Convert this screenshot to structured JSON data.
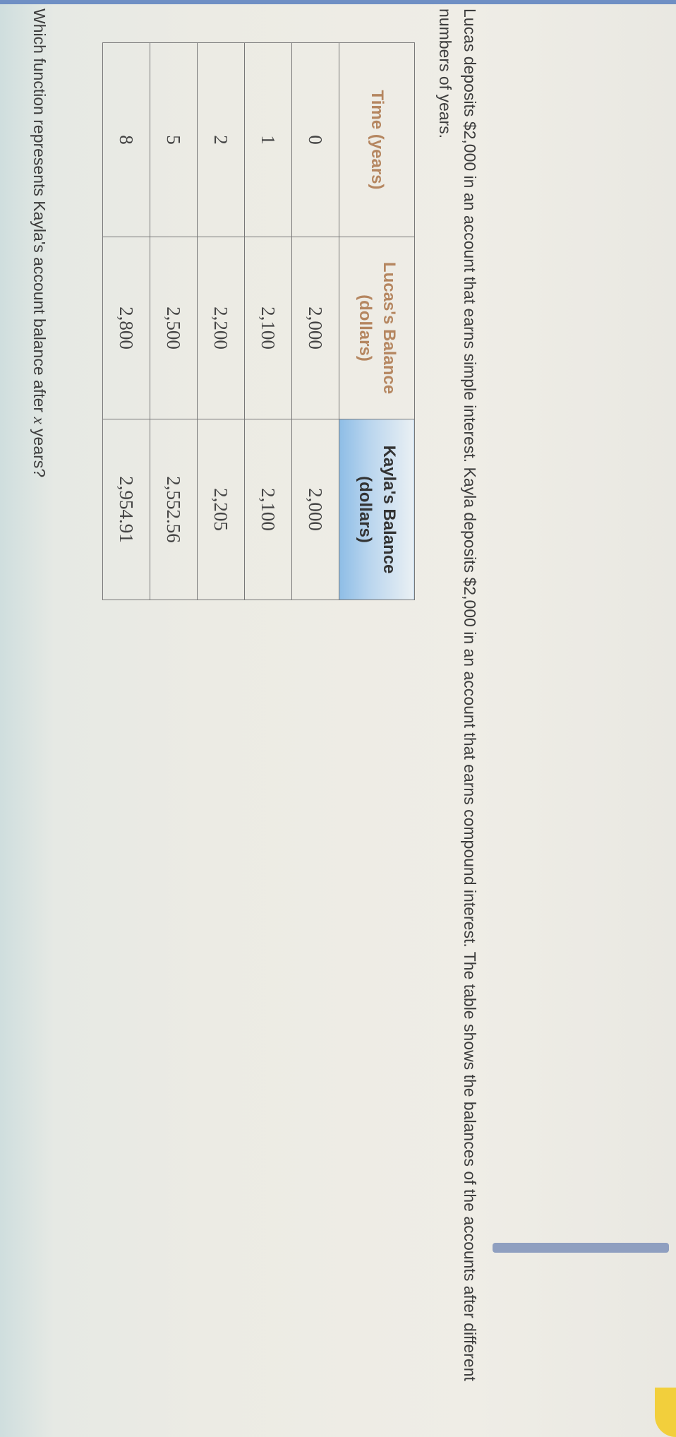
{
  "problem": {
    "intro": "Lucas deposits $2,000 in an account that earns simple interest. Kayla deposits $2,000 in an account that earns compound interest. The table shows the balances of the accounts after different numbers of years.",
    "question_prefix": "Which function represents Kayla's account balance after ",
    "question_var": "x",
    "question_suffix": " years?"
  },
  "table": {
    "headers": [
      "Time (years)",
      "Lucas's Balance",
      "(dollars)",
      "Kayla's Balance",
      "(dollars)"
    ],
    "rows": [
      [
        "0",
        "2,000",
        "2,000"
      ],
      [
        "1",
        "2,100",
        "2,100"
      ],
      [
        "2",
        "2,200",
        "2,205"
      ],
      [
        "5",
        "2,500",
        "2,552.56"
      ],
      [
        "8",
        "2,800",
        "2,954.91"
      ]
    ]
  },
  "colors": {
    "header_accent": "#8ebde6",
    "header_text": "#b58660"
  }
}
